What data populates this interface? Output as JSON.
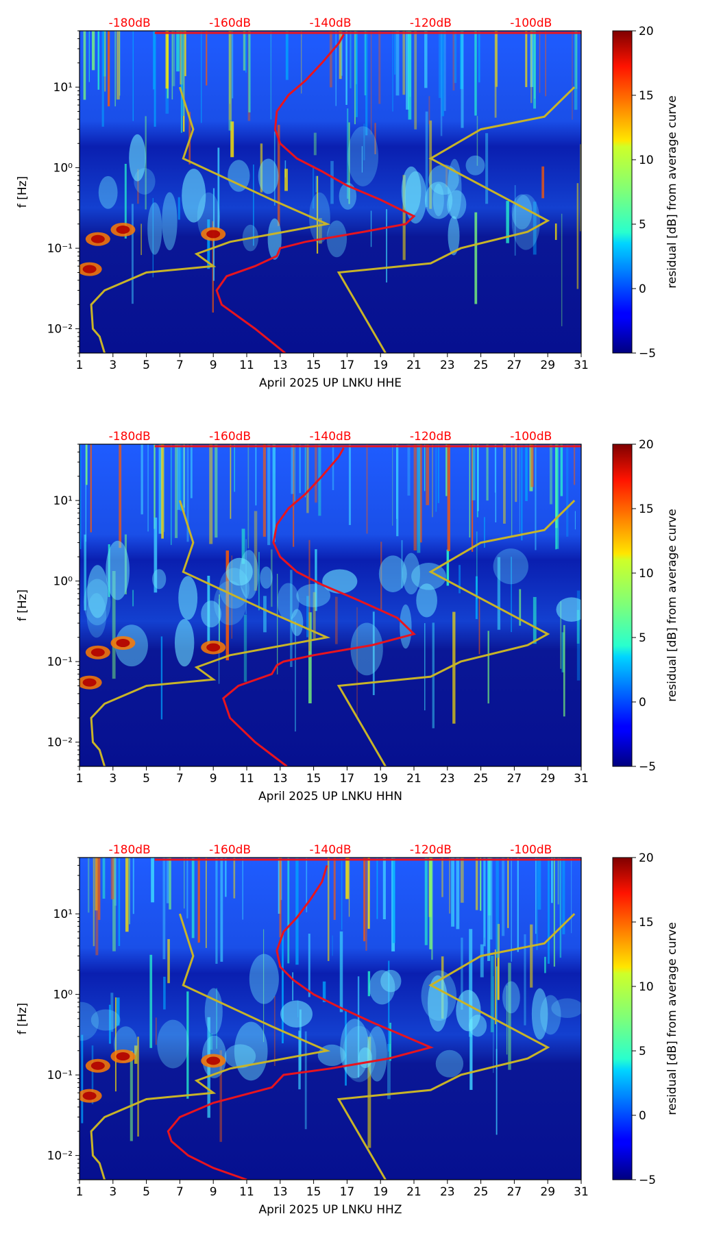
{
  "colors": {
    "top_label": "#ff0000",
    "median_curve": "#e8141e",
    "noise_model": "#c8b428",
    "axis": "#000000"
  },
  "chart_data": [
    {
      "type": "heatmap",
      "title": "",
      "xlabel": "April 2025 UP LNKU  HHE",
      "ylabel": "f [Hz]",
      "colorbar_label": "residual [dB] from average curve",
      "xlim": [
        1,
        31
      ],
      "ylim": [
        0.005,
        50
      ],
      "yscale": "log",
      "xticks": [
        "1",
        "3",
        "5",
        "7",
        "9",
        "11",
        "13",
        "15",
        "17",
        "19",
        "21",
        "23",
        "25",
        "27",
        "29",
        "31"
      ],
      "yticks": [
        {
          "value": 0.01,
          "label": "10⁻²"
        },
        {
          "value": 0.1,
          "label": "10⁻¹"
        },
        {
          "value": 1,
          "label": "10⁰"
        },
        {
          "value": 10,
          "label": "10¹"
        }
      ],
      "top_axis": {
        "xlim_dB": [
          -190,
          -90
        ],
        "ticks": [
          {
            "value": -180,
            "label": "-180dB"
          },
          {
            "value": -160,
            "label": "-160dB"
          },
          {
            "value": -140,
            "label": "-140dB"
          },
          {
            "value": -120,
            "label": "-120dB"
          },
          {
            "value": -100,
            "label": "-100dB"
          }
        ]
      },
      "colorbar": {
        "range": [
          -5,
          20
        ],
        "ticks": [
          "-5",
          "0",
          "5",
          "10",
          "15",
          "20"
        ]
      },
      "median_curve": [
        [
          13.3,
          0.005
        ],
        [
          11.5,
          0.01
        ],
        [
          9.5,
          0.02
        ],
        [
          9.2,
          0.03
        ],
        [
          9.8,
          0.045
        ],
        [
          11.5,
          0.06
        ],
        [
          12.8,
          0.08
        ],
        [
          13.0,
          0.1
        ],
        [
          14.5,
          0.12
        ],
        [
          18.0,
          0.16
        ],
        [
          20.5,
          0.2
        ],
        [
          21.0,
          0.25
        ],
        [
          19.0,
          0.4
        ],
        [
          17.0,
          0.6
        ],
        [
          15.5,
          0.9
        ],
        [
          14.0,
          1.3
        ],
        [
          13.0,
          2.0
        ],
        [
          12.7,
          3.0
        ],
        [
          12.8,
          5.0
        ],
        [
          13.5,
          8.0
        ],
        [
          14.5,
          12.0
        ],
        [
          15.5,
          20.0
        ],
        [
          16.5,
          35.0
        ],
        [
          16.8,
          45.0
        ]
      ],
      "noise_models": [
        [
          [
            2.5,
            0.005
          ],
          [
            2.2,
            0.008
          ],
          [
            1.8,
            0.01
          ],
          [
            1.7,
            0.02
          ],
          [
            2.5,
            0.03
          ],
          [
            5.0,
            0.05
          ],
          [
            9.0,
            0.06
          ],
          [
            8.0,
            0.085
          ],
          [
            10.0,
            0.12
          ],
          [
            15.8,
            0.2
          ],
          [
            12.5,
            0.4
          ],
          [
            7.2,
            1.3
          ],
          [
            7.8,
            3.0
          ],
          [
            7.0,
            10.0
          ]
        ],
        [
          [
            19.3,
            0.005
          ],
          [
            16.5,
            0.05
          ],
          [
            22.0,
            0.065
          ],
          [
            23.8,
            0.1
          ],
          [
            27.8,
            0.16
          ],
          [
            29.0,
            0.22
          ],
          [
            22.0,
            1.3
          ],
          [
            25.0,
            3.0
          ],
          [
            28.8,
            4.3
          ],
          [
            30.6,
            10.0
          ]
        ]
      ]
    },
    {
      "type": "heatmap",
      "title": "",
      "xlabel": "April 2025 UP LNKU  HHN",
      "ylabel": "f [Hz]",
      "colorbar_label": "residual [dB] from average curve",
      "xlim": [
        1,
        31
      ],
      "ylim": [
        0.005,
        50
      ],
      "yscale": "log",
      "xticks": [
        "1",
        "3",
        "5",
        "7",
        "9",
        "11",
        "13",
        "15",
        "17",
        "19",
        "21",
        "23",
        "25",
        "27",
        "29",
        "31"
      ],
      "yticks": [
        {
          "value": 0.01,
          "label": "10⁻²"
        },
        {
          "value": 0.1,
          "label": "10⁻¹"
        },
        {
          "value": 1,
          "label": "10⁰"
        },
        {
          "value": 10,
          "label": "10¹"
        }
      ],
      "top_axis": {
        "xlim_dB": [
          -190,
          -90
        ],
        "ticks": [
          {
            "value": -180,
            "label": "-180dB"
          },
          {
            "value": -160,
            "label": "-160dB"
          },
          {
            "value": -140,
            "label": "-140dB"
          },
          {
            "value": -120,
            "label": "-120dB"
          },
          {
            "value": -100,
            "label": "-100dB"
          }
        ]
      },
      "colorbar": {
        "range": [
          -5,
          20
        ],
        "ticks": [
          "-5",
          "0",
          "5",
          "10",
          "15",
          "20"
        ]
      },
      "median_curve": [
        [
          13.4,
          0.005
        ],
        [
          11.5,
          0.01
        ],
        [
          10.0,
          0.02
        ],
        [
          9.6,
          0.035
        ],
        [
          10.5,
          0.05
        ],
        [
          12.5,
          0.07
        ],
        [
          12.8,
          0.09
        ],
        [
          13.2,
          0.1
        ],
        [
          15.0,
          0.12
        ],
        [
          18.5,
          0.16
        ],
        [
          21.0,
          0.22
        ],
        [
          20.0,
          0.35
        ],
        [
          17.5,
          0.6
        ],
        [
          15.5,
          0.9
        ],
        [
          14.0,
          1.3
        ],
        [
          13.0,
          2.0
        ],
        [
          12.6,
          3.0
        ],
        [
          12.8,
          5.0
        ],
        [
          13.5,
          8.0
        ],
        [
          14.5,
          12.0
        ],
        [
          15.5,
          20.0
        ],
        [
          16.5,
          35.0
        ],
        [
          16.8,
          45.0
        ]
      ],
      "noise_models": [
        [
          [
            2.5,
            0.005
          ],
          [
            2.2,
            0.008
          ],
          [
            1.8,
            0.01
          ],
          [
            1.7,
            0.02
          ],
          [
            2.5,
            0.03
          ],
          [
            5.0,
            0.05
          ],
          [
            9.0,
            0.06
          ],
          [
            8.0,
            0.085
          ],
          [
            10.0,
            0.12
          ],
          [
            15.8,
            0.2
          ],
          [
            12.5,
            0.4
          ],
          [
            7.2,
            1.3
          ],
          [
            7.8,
            3.0
          ],
          [
            7.0,
            10.0
          ]
        ],
        [
          [
            19.3,
            0.005
          ],
          [
            16.5,
            0.05
          ],
          [
            22.0,
            0.065
          ],
          [
            23.8,
            0.1
          ],
          [
            27.8,
            0.16
          ],
          [
            29.0,
            0.22
          ],
          [
            22.0,
            1.3
          ],
          [
            25.0,
            3.0
          ],
          [
            28.8,
            4.3
          ],
          [
            30.6,
            10.0
          ]
        ]
      ]
    },
    {
      "type": "heatmap",
      "title": "",
      "xlabel": "April 2025 UP LNKU  HHZ",
      "ylabel": "f [Hz]",
      "colorbar_label": "residual [dB] from average curve",
      "xlim": [
        1,
        31
      ],
      "ylim": [
        0.005,
        50
      ],
      "yscale": "log",
      "xticks": [
        "1",
        "3",
        "5",
        "7",
        "9",
        "11",
        "13",
        "15",
        "17",
        "19",
        "21",
        "23",
        "25",
        "27",
        "29",
        "31"
      ],
      "yticks": [
        {
          "value": 0.01,
          "label": "10⁻²"
        },
        {
          "value": 0.1,
          "label": "10⁻¹"
        },
        {
          "value": 1,
          "label": "10⁰"
        },
        {
          "value": 10,
          "label": "10¹"
        }
      ],
      "top_axis": {
        "xlim_dB": [
          -190,
          -90
        ],
        "ticks": [
          {
            "value": -180,
            "label": "-180dB"
          },
          {
            "value": -160,
            "label": "-160dB"
          },
          {
            "value": -140,
            "label": "-140dB"
          },
          {
            "value": -120,
            "label": "-120dB"
          },
          {
            "value": -100,
            "label": "-100dB"
          }
        ]
      },
      "colorbar": {
        "range": [
          -5,
          20
        ],
        "ticks": [
          "-5",
          "0",
          "5",
          "10",
          "15",
          "20"
        ]
      },
      "median_curve": [
        [
          11.0,
          0.005
        ],
        [
          9.0,
          0.007
        ],
        [
          7.5,
          0.01
        ],
        [
          6.5,
          0.015
        ],
        [
          6.3,
          0.02
        ],
        [
          7.0,
          0.03
        ],
        [
          9.0,
          0.045
        ],
        [
          12.5,
          0.07
        ],
        [
          13.2,
          0.1
        ],
        [
          16.0,
          0.12
        ],
        [
          19.5,
          0.16
        ],
        [
          22.0,
          0.22
        ],
        [
          20.5,
          0.3
        ],
        [
          18.5,
          0.45
        ],
        [
          16.5,
          0.7
        ],
        [
          15.0,
          1.0
        ],
        [
          13.8,
          1.5
        ],
        [
          13.0,
          2.2
        ],
        [
          12.8,
          3.5
        ],
        [
          13.2,
          6.0
        ],
        [
          14.0,
          9.0
        ],
        [
          14.8,
          15.0
        ],
        [
          15.5,
          25.0
        ],
        [
          15.8,
          40.0
        ]
      ],
      "noise_models": [
        [
          [
            2.5,
            0.005
          ],
          [
            2.2,
            0.008
          ],
          [
            1.8,
            0.01
          ],
          [
            1.7,
            0.02
          ],
          [
            2.5,
            0.03
          ],
          [
            5.0,
            0.05
          ],
          [
            9.0,
            0.06
          ],
          [
            8.0,
            0.085
          ],
          [
            10.0,
            0.12
          ],
          [
            15.8,
            0.2
          ],
          [
            12.5,
            0.4
          ],
          [
            7.2,
            1.3
          ],
          [
            7.8,
            3.0
          ],
          [
            7.0,
            10.0
          ]
        ],
        [
          [
            19.3,
            0.005
          ],
          [
            16.5,
            0.05
          ],
          [
            22.0,
            0.065
          ],
          [
            23.8,
            0.1
          ],
          [
            27.8,
            0.16
          ],
          [
            29.0,
            0.22
          ],
          [
            22.0,
            1.3
          ],
          [
            25.0,
            3.0
          ],
          [
            28.8,
            4.3
          ],
          [
            30.6,
            10.0
          ]
        ]
      ]
    }
  ]
}
